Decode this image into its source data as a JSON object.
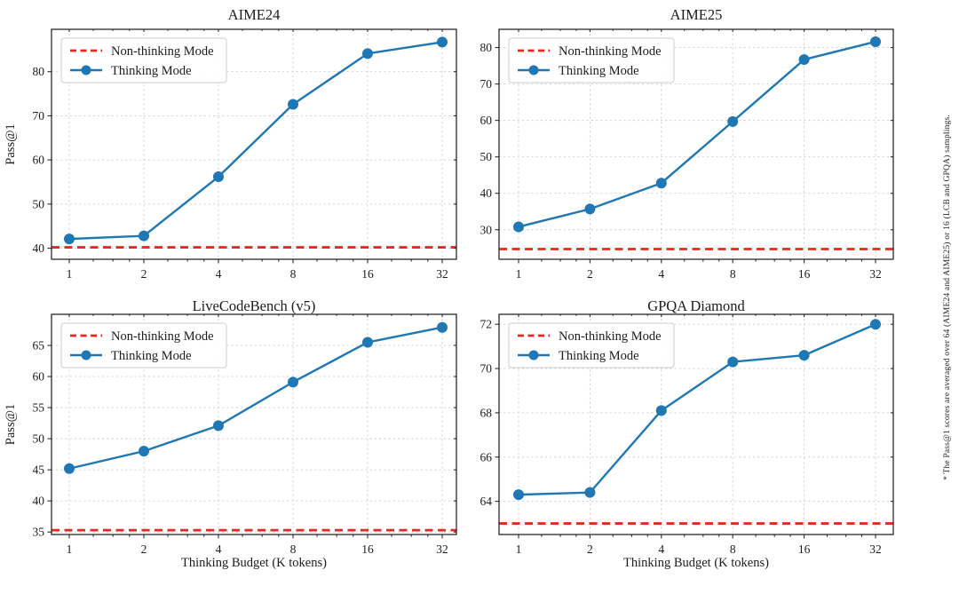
{
  "figure": {
    "xlabel": "Thinking Budget (K tokens)",
    "ylabel": "Pass@1",
    "footnote": "* The Pass@1 scores are averaged over 64 (AIME24 and AIME25) or 16 (LCB and GPQA) samplings.",
    "legend": {
      "position": "upper left",
      "entries": [
        {
          "label": "Non-thinking Mode",
          "style": "red-dashed-line"
        },
        {
          "label": "Thinking Mode",
          "style": "blue-line-circle-marker"
        }
      ]
    },
    "colors": {
      "thinking_mode": "#1f77b4",
      "non_thinking_mode": "#e8291f",
      "gridline": "#cbcbcb",
      "spine": "#2a2a2a",
      "text": "#1c1c1c",
      "legend_border": "#cccccc",
      "background": "#ffffff"
    }
  },
  "chart_data": [
    {
      "type": "line",
      "title": "AIME24",
      "x": [
        1,
        2,
        4,
        8,
        16,
        32
      ],
      "x_scale": "log2",
      "xlabel": "",
      "ylabel": "Pass@1",
      "series": [
        {
          "name": "Thinking Mode",
          "values": [
            42.1,
            42.8,
            56.2,
            72.6,
            84.1,
            86.7
          ]
        },
        {
          "name": "Non-thinking Mode",
          "type": "hline",
          "value": 40.2
        }
      ],
      "yticks": [
        40,
        50,
        60,
        70,
        80
      ],
      "ylim": [
        37.5,
        89.6
      ],
      "grid": true
    },
    {
      "type": "line",
      "title": "AIME25",
      "x": [
        1,
        2,
        4,
        8,
        16,
        32
      ],
      "x_scale": "log2",
      "xlabel": "",
      "ylabel": "",
      "series": [
        {
          "name": "Thinking Mode",
          "values": [
            30.8,
            35.7,
            42.8,
            59.7,
            76.7,
            81.6
          ]
        },
        {
          "name": "Non-thinking Mode",
          "type": "hline",
          "value": 24.7
        }
      ],
      "yticks": [
        30,
        40,
        50,
        60,
        70,
        80
      ],
      "ylim": [
        21.9,
        85.0
      ],
      "grid": true
    },
    {
      "type": "line",
      "title": "LiveCodeBench (v5)",
      "x": [
        1,
        2,
        4,
        8,
        16,
        32
      ],
      "x_scale": "log2",
      "xlabel": "Thinking Budget (K tokens)",
      "ylabel": "Pass@1",
      "series": [
        {
          "name": "Thinking Mode",
          "values": [
            45.2,
            48.0,
            52.1,
            59.1,
            65.5,
            67.9
          ]
        },
        {
          "name": "Non-thinking Mode",
          "type": "hline",
          "value": 35.3
        }
      ],
      "yticks": [
        35,
        40,
        45,
        50,
        55,
        60,
        65
      ],
      "ylim": [
        34.6,
        70.0
      ],
      "grid": true
    },
    {
      "type": "line",
      "title": "GPQA Diamond",
      "x": [
        1,
        2,
        4,
        8,
        16,
        32
      ],
      "x_scale": "log2",
      "xlabel": "Thinking Budget (K tokens)",
      "ylabel": "",
      "series": [
        {
          "name": "Thinking Mode",
          "values": [
            64.3,
            64.4,
            68.1,
            70.3,
            70.6,
            72.0
          ]
        },
        {
          "name": "Non-thinking Mode",
          "type": "hline",
          "value": 63.0
        }
      ],
      "yticks": [
        64,
        66,
        68,
        70,
        72
      ],
      "ylim": [
        62.5,
        72.45
      ],
      "grid": true
    }
  ]
}
